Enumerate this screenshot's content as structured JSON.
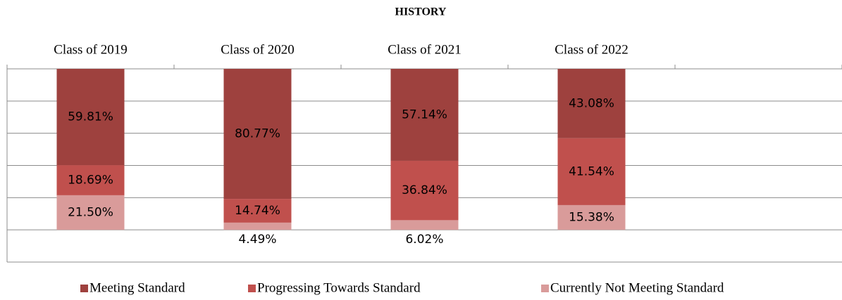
{
  "chart_data": {
    "type": "stacked_bar",
    "title": "HISTORY",
    "categories": [
      "Class of 2019",
      "Class of 2020",
      "Class of 2021",
      "Class of 2022",
      null
    ],
    "series": [
      {
        "name": "Meeting Standard",
        "color": "#9e413e",
        "values": [
          59.81,
          80.77,
          57.14,
          43.08,
          null
        ],
        "value_labels": [
          "59.81%",
          "80.77%",
          "57.14%",
          "43.08%",
          null
        ]
      },
      {
        "name": "Progressing Towards Standard",
        "color": "#c0504d",
        "values": [
          18.69,
          14.74,
          36.84,
          41.54,
          null
        ],
        "value_labels": [
          "18.69%",
          "14.74%",
          "36.84%",
          "41.54%",
          null
        ]
      },
      {
        "name": "Currently Not Meeting Standard",
        "color": "#d99b9a",
        "values": [
          21.5,
          4.49,
          6.02,
          15.38,
          null
        ],
        "value_labels": [
          "21.50%",
          "4.49%",
          "6.02%",
          "15.38%",
          null
        ]
      }
    ],
    "ylim": [
      -20,
      100
    ],
    "yticks": [
      -20,
      0,
      20,
      40,
      60,
      80,
      100
    ],
    "grid": true,
    "legend": "bottom"
  }
}
